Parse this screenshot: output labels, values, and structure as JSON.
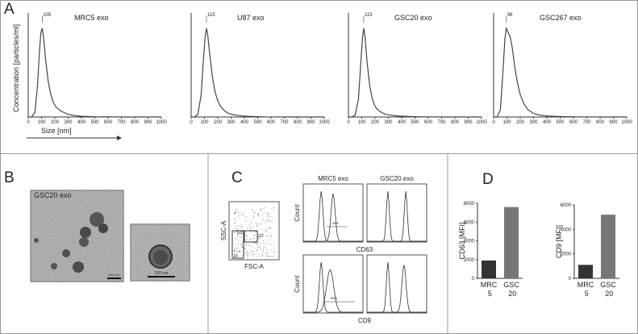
{
  "panel_labels": [
    "A",
    "B",
    "C",
    "D"
  ],
  "chart_data": [
    {
      "type": "line",
      "title": "MRC5 exo",
      "peak": 105,
      "color": "#444",
      "y_label": "Concentration [particles/ml]",
      "x_label": "Size [nm]",
      "x": [
        0,
        25,
        50,
        70,
        85,
        95,
        105,
        115,
        130,
        150,
        170,
        190,
        210,
        240,
        270,
        300,
        350,
        400,
        500,
        700,
        1000
      ],
      "values": [
        0,
        0,
        0.05,
        0.35,
        0.75,
        0.95,
        1,
        0.9,
        0.65,
        0.4,
        0.25,
        0.16,
        0.11,
        0.07,
        0.05,
        0.03,
        0.015,
        0.008,
        0.003,
        0,
        0
      ],
      "xlim": [
        0,
        1000
      ],
      "ylim": [
        0,
        1.1
      ],
      "xticks": [
        0,
        100,
        200,
        300,
        400,
        500,
        600,
        700,
        800,
        900,
        1000
      ]
    },
    {
      "type": "line",
      "title": "U87 exo",
      "peak": 115,
      "color": "#444",
      "x": [
        0,
        25,
        50,
        75,
        90,
        105,
        115,
        125,
        140,
        160,
        180,
        200,
        220,
        250,
        280,
        320,
        380,
        450,
        550,
        700,
        1000
      ],
      "values": [
        0,
        0,
        0.03,
        0.25,
        0.6,
        0.9,
        1,
        0.92,
        0.7,
        0.45,
        0.28,
        0.18,
        0.12,
        0.07,
        0.04,
        0.025,
        0.012,
        0.006,
        0.002,
        0,
        0
      ],
      "xlim": [
        0,
        1000
      ],
      "ylim": [
        0,
        1.1
      ],
      "xticks": [
        0,
        100,
        200,
        300,
        400,
        500,
        600,
        700,
        800,
        900,
        1000
      ]
    },
    {
      "type": "line",
      "title": "GSC20 exo",
      "peak": 115,
      "color": "#444",
      "x": [
        0,
        25,
        50,
        75,
        90,
        105,
        115,
        125,
        140,
        160,
        180,
        200,
        220,
        250,
        280,
        320,
        380,
        450,
        550,
        700,
        1000
      ],
      "values": [
        0,
        0,
        0.02,
        0.2,
        0.55,
        0.88,
        1,
        0.9,
        0.62,
        0.35,
        0.2,
        0.12,
        0.08,
        0.05,
        0.03,
        0.02,
        0.01,
        0.005,
        0.002,
        0,
        0
      ],
      "xlim": [
        0,
        1000
      ],
      "ylim": [
        0,
        1.1
      ],
      "xticks": [
        0,
        100,
        200,
        300,
        400,
        500,
        600,
        700,
        800,
        900,
        1000
      ]
    },
    {
      "type": "line",
      "title": "GSC267 exo",
      "peak": 96,
      "color": "#444",
      "x": [
        0,
        25,
        50,
        70,
        85,
        96,
        110,
        125,
        140,
        160,
        180,
        200,
        230,
        260,
        300,
        350,
        400,
        480,
        600,
        800,
        1000
      ],
      "values": [
        0,
        0,
        0.08,
        0.5,
        0.88,
        1,
        0.95,
        0.9,
        0.78,
        0.55,
        0.38,
        0.25,
        0.14,
        0.08,
        0.04,
        0.02,
        0.012,
        0.006,
        0.002,
        0,
        0
      ],
      "xlim": [
        0,
        1000
      ],
      "ylim": [
        0,
        1.1
      ],
      "xticks": [
        0,
        100,
        200,
        300,
        400,
        500,
        600,
        700,
        800,
        900,
        1000
      ]
    },
    {
      "type": "bar",
      "y_label": "CD63 [MFI]",
      "categories": [
        "MRC 5",
        "GSC 20"
      ],
      "values": [
        1900,
        7600
      ],
      "colors": [
        "#333333",
        "#777777"
      ],
      "ylim": [
        0,
        8000
      ],
      "yticks": [
        0,
        2000,
        4000,
        6000,
        8000
      ]
    },
    {
      "type": "bar",
      "y_label": "CD9 [MFI]",
      "categories": [
        "MRC 5",
        "GSC 20"
      ],
      "values": [
        1100,
        5200
      ],
      "colors": [
        "#333333",
        "#777777"
      ],
      "ylim": [
        0,
        6000
      ],
      "yticks": [
        0,
        2000,
        4000,
        6000
      ]
    }
  ],
  "panel_b": {
    "label": "GSC20 exo",
    "scale_bars": [
      "200 nm",
      "100 nm"
    ]
  },
  "panel_c": {
    "y_axis": "SSC-A",
    "x_axis": "FSC-A",
    "gates": [
      "G1",
      "G2"
    ],
    "columns": [
      "MRC5 exo",
      "GSC20 exo"
    ],
    "markers": [
      "CD63",
      "CD9"
    ],
    "count_label": "Count",
    "percentages": [
      "50%",
      "98%"
    ]
  }
}
